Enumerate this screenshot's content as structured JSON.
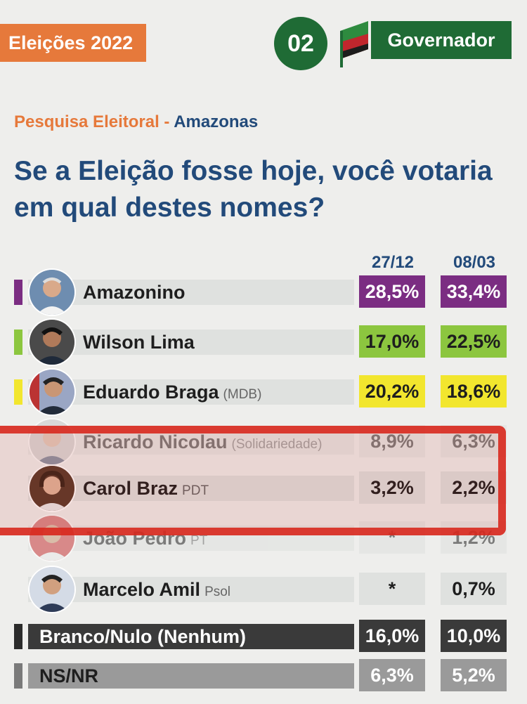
{
  "header": {
    "tag": "Eleições 2022",
    "number": "02",
    "role": "Governador"
  },
  "kicker": {
    "part1": "Pesquisa Eleitoral",
    "separator": " - ",
    "part2": "Amazonas"
  },
  "question": "Se a Eleição fosse hoje, você votaria em qual destes nomes?",
  "colors": {
    "orange": "#e6793b",
    "green": "#1f6b35",
    "navy": "#224a7a",
    "purple": "#7b2d82",
    "lime": "#8cc63f",
    "yellow": "#f2e62e",
    "highlight_red": "#d8271c"
  },
  "chart_data": {
    "type": "table",
    "columns": [
      "27/12",
      "08/03"
    ],
    "rows": [
      {
        "name": "Amazonino",
        "party": "",
        "values": [
          "28,5%",
          "33,4%"
        ],
        "color": "#7b2d82"
      },
      {
        "name": "Wilson Lima",
        "party": "",
        "values": [
          "17,0%",
          "22,5%"
        ],
        "color": "#8cc63f"
      },
      {
        "name": "Eduardo Braga",
        "party": "(MDB)",
        "values": [
          "20,2%",
          "18,6%"
        ],
        "color": "#f2e62e"
      },
      {
        "name": "Ricardo Nicolau",
        "party": "(Solidariedade)",
        "values": [
          "8,9%",
          "6,3%"
        ],
        "color": ""
      },
      {
        "name": "Carol Braz",
        "party": "PDT",
        "values": [
          "3,2%",
          "2,2%"
        ],
        "color": ""
      },
      {
        "name": "João Pedro",
        "party": "PT",
        "values": [
          "*",
          "1,2%"
        ],
        "color": ""
      },
      {
        "name": "Marcelo Amil",
        "party": "Psol",
        "values": [
          "*",
          "0,7%"
        ],
        "color": ""
      },
      {
        "name": "Branco/Nulo (Nenhum)",
        "party": "",
        "values": [
          "16,0%",
          "10,0%"
        ],
        "color": "#3a3a3a"
      },
      {
        "name": "NS/NR",
        "party": "",
        "values": [
          "6,3%",
          "5,2%"
        ],
        "color": "#9a9a9a"
      }
    ]
  }
}
